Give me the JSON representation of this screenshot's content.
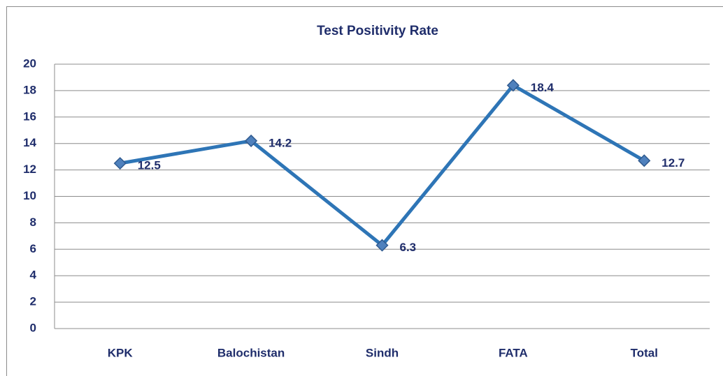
{
  "chart_data": {
    "type": "line",
    "title": "Test Positivity Rate",
    "categories": [
      "KPK",
      "Balochistan",
      "Sindh",
      "FATA",
      "Total"
    ],
    "values": [
      12.5,
      14.2,
      6.3,
      18.4,
      12.7
    ],
    "color": "#2e75b6",
    "marker_color": "#4f81bd",
    "ylim": [
      0,
      20
    ],
    "yticks": [
      0,
      2,
      4,
      6,
      8,
      10,
      12,
      14,
      16,
      18,
      20
    ],
    "grid": true
  }
}
